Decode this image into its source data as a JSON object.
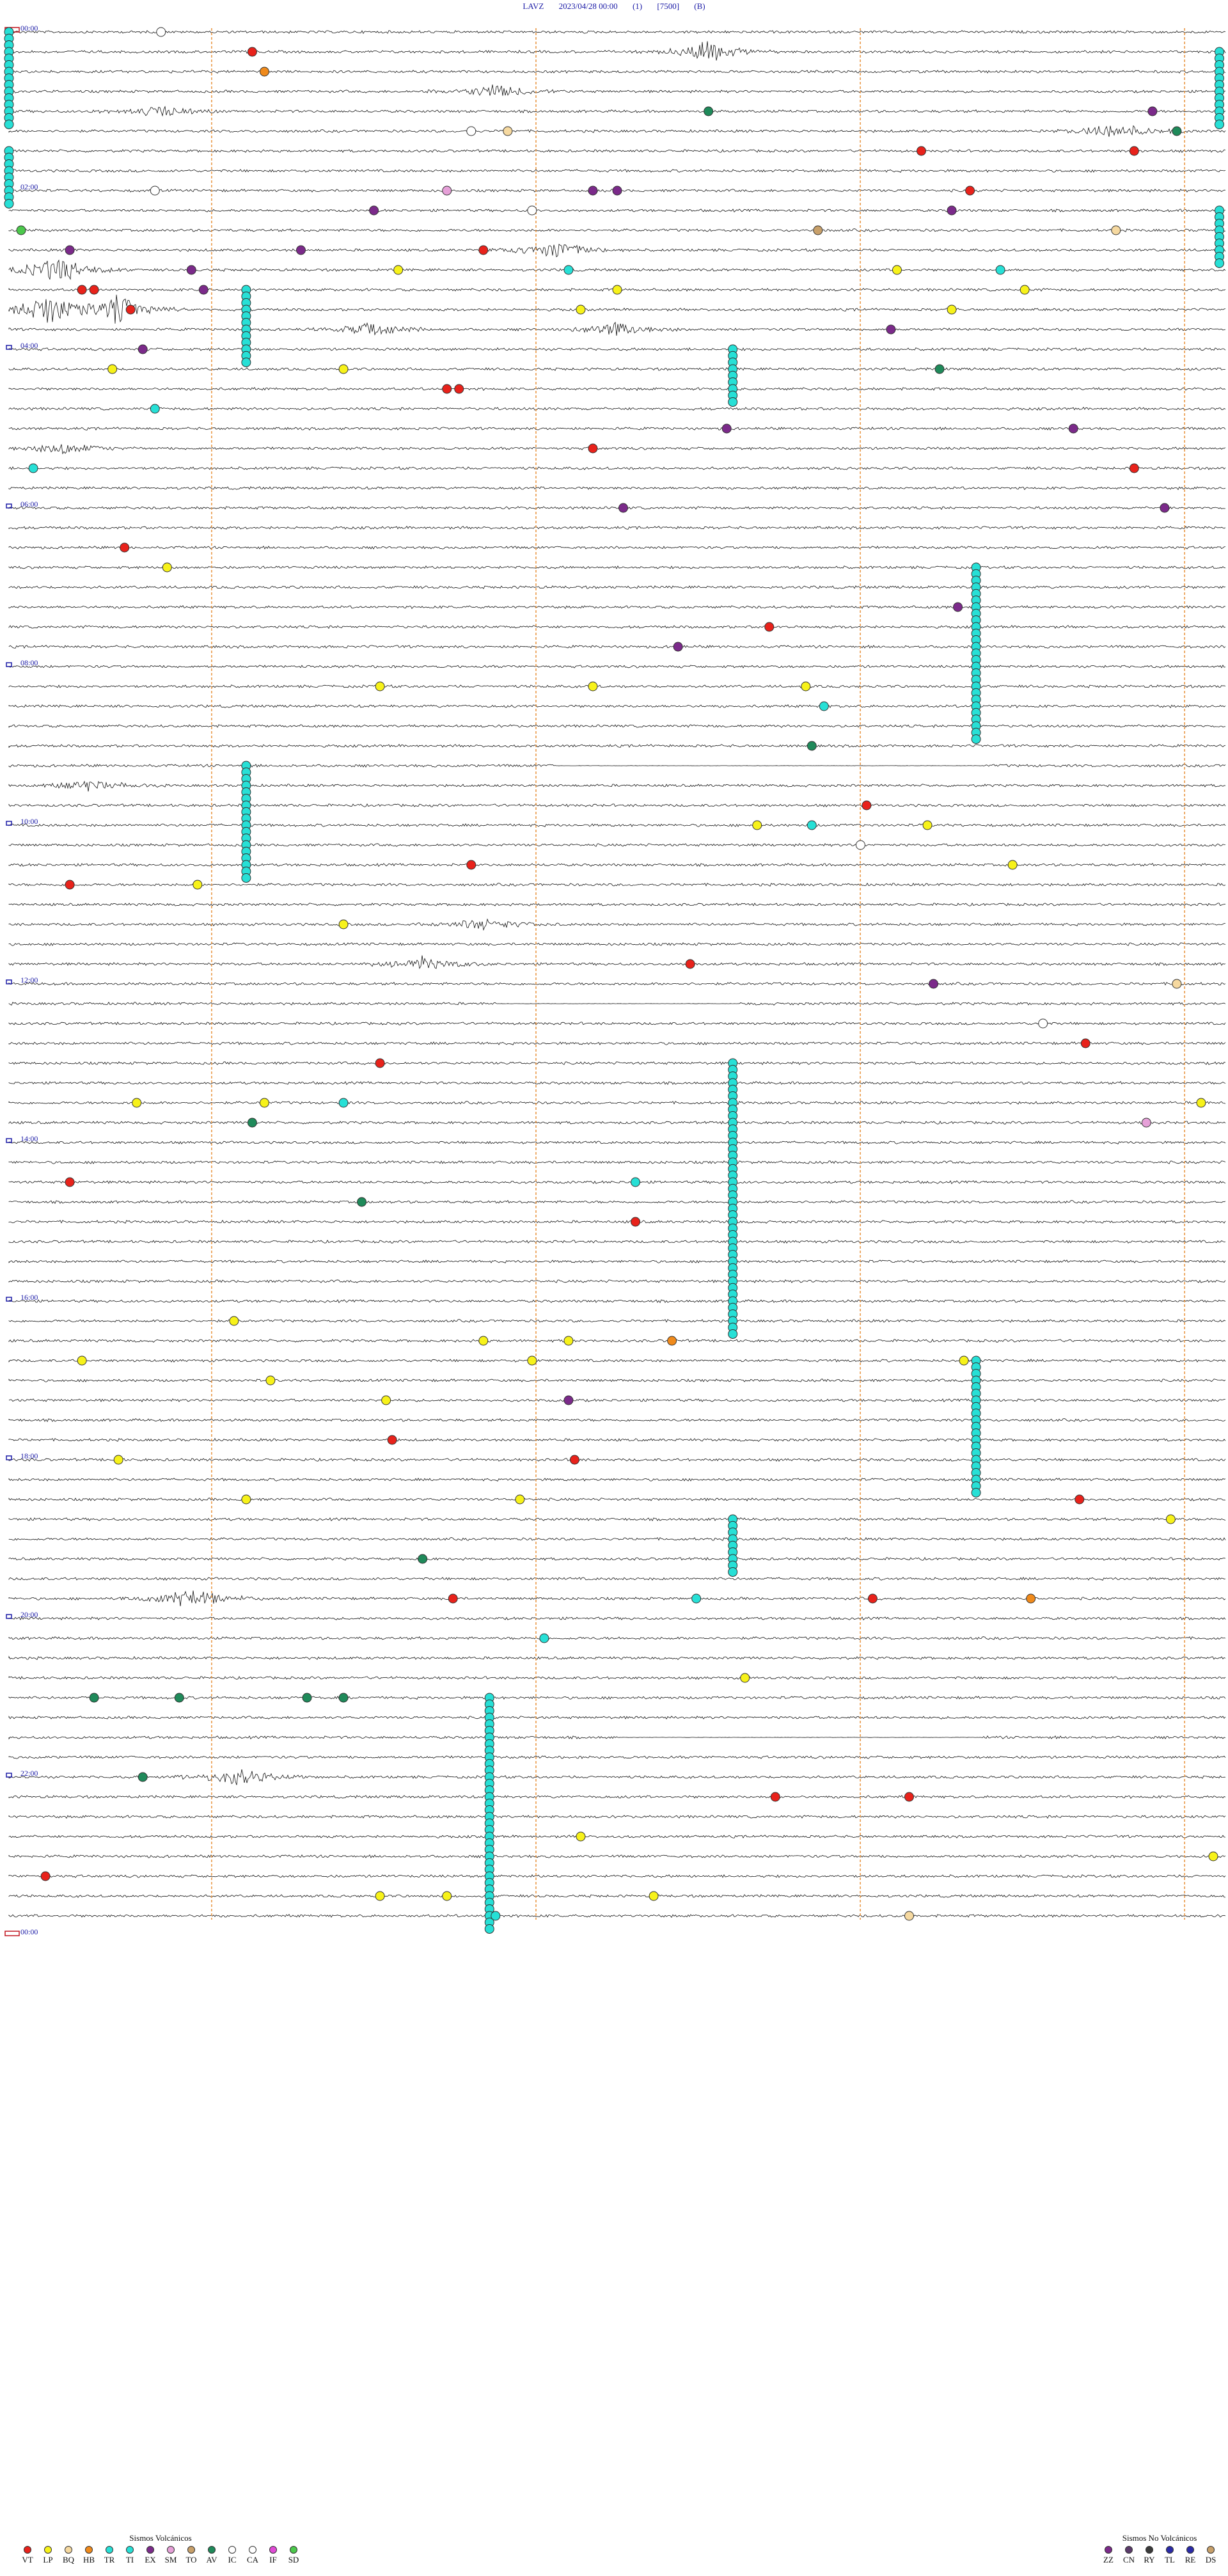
{
  "header": {
    "station": "LAVZ",
    "datetime": "2023/04/28 00:00",
    "channel": "(1)",
    "scale": "[7500]",
    "filter": "(B)"
  },
  "chart_data": {
    "type": "heatmap",
    "x_minutes_per_row": 15,
    "rows": 96,
    "hour_labels": [
      "00:00",
      "02:00",
      "04:00",
      "06:00",
      "08:00",
      "10:00",
      "12:00",
      "14:00",
      "16:00",
      "18:00",
      "20:00",
      "22:00",
      "00:00"
    ],
    "vertical_markers_minute": [
      2.5,
      6.5,
      10.5,
      14.5
    ],
    "amplitude_events": [
      {
        "row": 1,
        "minute": 11.5,
        "amp": 18
      },
      {
        "row": 3,
        "minute": 8.0,
        "amp": 12
      },
      {
        "row": 4,
        "minute": 2.5,
        "amp": 10
      },
      {
        "row": 5,
        "minute": 18.2,
        "amp": 14
      },
      {
        "row": 11,
        "minute": 9.0,
        "amp": 16
      },
      {
        "row": 12,
        "minute": 0.8,
        "amp": 22
      },
      {
        "row": 14,
        "minute": 0.6,
        "amp": 26
      },
      {
        "row": 14,
        "minute": 1.8,
        "amp": 24
      },
      {
        "row": 15,
        "minute": 6.0,
        "amp": 12
      },
      {
        "row": 15,
        "minute": 10.0,
        "amp": 12
      },
      {
        "row": 21,
        "minute": 0.9,
        "amp": 10
      },
      {
        "row": 38,
        "minute": 1.3,
        "amp": 10
      },
      {
        "row": 45,
        "minute": 7.8,
        "amp": 10
      },
      {
        "row": 47,
        "minute": 6.8,
        "amp": 12
      },
      {
        "row": 79,
        "minute": 3.0,
        "amp": 18
      },
      {
        "row": 88,
        "minute": 3.8,
        "amp": 16
      }
    ],
    "flat_segments": [
      {
        "row": 37,
        "from_minute": 9.0,
        "to_minute": 16.0
      },
      {
        "row": 49,
        "from_minute": 8.0,
        "to_minute": 12.0
      },
      {
        "row": 86,
        "from_minute": 10.0,
        "to_minute": 16.0
      }
    ],
    "event_runs": [
      {
        "type": "TR",
        "minute": 0.0,
        "row_from": 0,
        "row_to": 4
      },
      {
        "type": "TR",
        "minute": 19.9,
        "row_from": 1,
        "row_to": 4
      },
      {
        "type": "TR",
        "minute": 0.0,
        "row_from": 6,
        "row_to": 8
      },
      {
        "type": "TR",
        "minute": 19.9,
        "row_from": 9,
        "row_to": 11
      },
      {
        "type": "TR",
        "minute": 3.9,
        "row_from": 13,
        "row_to": 16
      },
      {
        "type": "TR",
        "minute": 11.9,
        "row_from": 16,
        "row_to": 18
      },
      {
        "type": "TR",
        "minute": 15.9,
        "row_from": 27,
        "row_to": 35
      },
      {
        "type": "TR",
        "minute": 3.9,
        "row_from": 37,
        "row_to": 42
      },
      {
        "type": "TR",
        "minute": 11.9,
        "row_from": 52,
        "row_to": 65
      },
      {
        "type": "TR",
        "minute": 15.9,
        "row_from": 67,
        "row_to": 73
      },
      {
        "type": "TR",
        "minute": 11.9,
        "row_from": 75,
        "row_to": 77
      },
      {
        "type": "TR",
        "minute": 7.9,
        "row_from": 84,
        "row_to": 95
      }
    ],
    "events": [
      {
        "type": "CA",
        "row": 0,
        "minute": 2.5
      },
      {
        "type": "VT",
        "row": 1,
        "minute": 4.0
      },
      {
        "type": "HB",
        "row": 2,
        "minute": 4.2
      },
      {
        "type": "AV",
        "row": 4,
        "minute": 11.5
      },
      {
        "type": "EX",
        "row": 4,
        "minute": 18.8
      },
      {
        "type": "CA",
        "row": 5,
        "minute": 7.6
      },
      {
        "type": "BQ",
        "row": 5,
        "minute": 8.2
      },
      {
        "type": "AV",
        "row": 5,
        "minute": 19.2
      },
      {
        "type": "VT",
        "row": 6,
        "minute": 15.0
      },
      {
        "type": "VT",
        "row": 6,
        "minute": 18.5
      },
      {
        "type": "CA",
        "row": 8,
        "minute": 2.4
      },
      {
        "type": "EX",
        "row": 8,
        "minute": 9.6
      },
      {
        "type": "EX",
        "row": 8,
        "minute": 10.0
      },
      {
        "type": "SM",
        "row": 8,
        "minute": 7.2
      },
      {
        "type": "VT",
        "row": 8,
        "minute": 15.8
      },
      {
        "type": "EX",
        "row": 9,
        "minute": 6.0
      },
      {
        "type": "IC",
        "row": 9,
        "minute": 8.6
      },
      {
        "type": "EX",
        "row": 9,
        "minute": 15.5
      },
      {
        "type": "TO",
        "row": 10,
        "minute": 13.3
      },
      {
        "type": "BQ",
        "row": 10,
        "minute": 18.2
      },
      {
        "type": "EX",
        "row": 11,
        "minute": 1.0
      },
      {
        "type": "EX",
        "row": 11,
        "minute": 4.8
      },
      {
        "type": "VT",
        "row": 11,
        "minute": 7.8
      },
      {
        "type": "SD",
        "row": 10,
        "minute": 0.2
      },
      {
        "type": "EX",
        "row": 12,
        "minute": 3.0
      },
      {
        "type": "LP",
        "row": 12,
        "minute": 6.4
      },
      {
        "type": "TI",
        "row": 12,
        "minute": 9.2
      },
      {
        "type": "LP",
        "row": 12,
        "minute": 14.6
      },
      {
        "type": "TI",
        "row": 12,
        "minute": 16.3
      },
      {
        "type": "EX",
        "row": 13,
        "minute": 3.2
      },
      {
        "type": "LP",
        "row": 13,
        "minute": 10.0
      },
      {
        "type": "LP",
        "row": 13,
        "minute": 16.7
      },
      {
        "type": "VT",
        "row": 13,
        "minute": 1.2
      },
      {
        "type": "VT",
        "row": 13,
        "minute": 1.4
      },
      {
        "type": "VT",
        "row": 14,
        "minute": 2.0
      },
      {
        "type": "LP",
        "row": 14,
        "minute": 15.5
      },
      {
        "type": "LP",
        "row": 14,
        "minute": 9.4
      },
      {
        "type": "EX",
        "row": 15,
        "minute": 14.5
      },
      {
        "type": "EX",
        "row": 16,
        "minute": 2.2
      },
      {
        "type": "LP",
        "row": 17,
        "minute": 5.5
      },
      {
        "type": "LP",
        "row": 17,
        "minute": 1.7
      },
      {
        "type": "VT",
        "row": 18,
        "minute": 7.2
      },
      {
        "type": "VT",
        "row": 18,
        "minute": 7.4
      },
      {
        "type": "AV",
        "row": 17,
        "minute": 15.3
      },
      {
        "type": "TI",
        "row": 19,
        "minute": 2.4
      },
      {
        "type": "EX",
        "row": 20,
        "minute": 11.8
      },
      {
        "type": "EX",
        "row": 20,
        "minute": 17.5
      },
      {
        "type": "VT",
        "row": 21,
        "minute": 9.6
      },
      {
        "type": "VT",
        "row": 22,
        "minute": 18.5
      },
      {
        "type": "TI",
        "row": 22,
        "minute": 0.4
      },
      {
        "type": "EX",
        "row": 24,
        "minute": 10.1
      },
      {
        "type": "EX",
        "row": 24,
        "minute": 19.0
      },
      {
        "type": "VT",
        "row": 26,
        "minute": 1.9
      },
      {
        "type": "LP",
        "row": 27,
        "minute": 2.6
      },
      {
        "type": "EX",
        "row": 29,
        "minute": 15.6
      },
      {
        "type": "VT",
        "row": 30,
        "minute": 12.5
      },
      {
        "type": "EX",
        "row": 31,
        "minute": 11.0
      },
      {
        "type": "LP",
        "row": 33,
        "minute": 6.1
      },
      {
        "type": "LP",
        "row": 33,
        "minute": 9.6
      },
      {
        "type": "LP",
        "row": 33,
        "minute": 13.1
      },
      {
        "type": "TI",
        "row": 34,
        "minute": 13.4
      },
      {
        "type": "AV",
        "row": 36,
        "minute": 13.2
      },
      {
        "type": "VT",
        "row": 39,
        "minute": 14.1
      },
      {
        "type": "LP",
        "row": 40,
        "minute": 12.3
      },
      {
        "type": "LP",
        "row": 40,
        "minute": 15.1
      },
      {
        "type": "TI",
        "row": 40,
        "minute": 13.2
      },
      {
        "type": "CA",
        "row": 41,
        "minute": 14.0
      },
      {
        "type": "VT",
        "row": 42,
        "minute": 7.6
      },
      {
        "type": "LP",
        "row": 42,
        "minute": 16.5
      },
      {
        "type": "LP",
        "row": 43,
        "minute": 3.1
      },
      {
        "type": "VT",
        "row": 43,
        "minute": 1.0
      },
      {
        "type": "LP",
        "row": 45,
        "minute": 5.5
      },
      {
        "type": "VT",
        "row": 47,
        "minute": 11.2
      },
      {
        "type": "EX",
        "row": 48,
        "minute": 15.2
      },
      {
        "type": "BQ",
        "row": 48,
        "minute": 19.2
      },
      {
        "type": "CA",
        "row": 50,
        "minute": 17.0
      },
      {
        "type": "VT",
        "row": 51,
        "minute": 17.7
      },
      {
        "type": "VT",
        "row": 52,
        "minute": 6.1
      },
      {
        "type": "LP",
        "row": 54,
        "minute": 2.1
      },
      {
        "type": "LP",
        "row": 54,
        "minute": 4.2
      },
      {
        "type": "TI",
        "row": 54,
        "minute": 5.5
      },
      {
        "type": "LP",
        "row": 54,
        "minute": 19.6
      },
      {
        "type": "SM",
        "row": 55,
        "minute": 18.7
      },
      {
        "type": "AV",
        "row": 55,
        "minute": 4.0
      },
      {
        "type": "TR",
        "row": 58,
        "minute": 10.3
      },
      {
        "type": "VT",
        "row": 58,
        "minute": 1.0
      },
      {
        "type": "VT",
        "row": 60,
        "minute": 10.3
      },
      {
        "type": "AV",
        "row": 59,
        "minute": 5.8
      },
      {
        "type": "LP",
        "row": 65,
        "minute": 3.7
      },
      {
        "type": "LP",
        "row": 66,
        "minute": 7.8
      },
      {
        "type": "LP",
        "row": 66,
        "minute": 9.2
      },
      {
        "type": "HB",
        "row": 66,
        "minute": 10.9
      },
      {
        "type": "LP",
        "row": 67,
        "minute": 1.2
      },
      {
        "type": "LP",
        "row": 67,
        "minute": 8.6
      },
      {
        "type": "LP",
        "row": 67,
        "minute": 15.7
      },
      {
        "type": "LP",
        "row": 68,
        "minute": 4.3
      },
      {
        "type": "EX",
        "row": 69,
        "minute": 9.2
      },
      {
        "type": "LP",
        "row": 69,
        "minute": 6.2
      },
      {
        "type": "VT",
        "row": 71,
        "minute": 6.3
      },
      {
        "type": "VT",
        "row": 72,
        "minute": 9.3
      },
      {
        "type": "LP",
        "row": 72,
        "minute": 1.8
      },
      {
        "type": "LP",
        "row": 74,
        "minute": 3.9
      },
      {
        "type": "LP",
        "row": 74,
        "minute": 8.4
      },
      {
        "type": "VT",
        "row": 74,
        "minute": 17.6
      },
      {
        "type": "LP",
        "row": 75,
        "minute": 19.1
      },
      {
        "type": "AV",
        "row": 77,
        "minute": 6.8
      },
      {
        "type": "TR",
        "row": 79,
        "minute": 11.3
      },
      {
        "type": "VT",
        "row": 79,
        "minute": 7.3
      },
      {
        "type": "VT",
        "row": 79,
        "minute": 14.2
      },
      {
        "type": "HB",
        "row": 79,
        "minute": 16.8
      },
      {
        "type": "TI",
        "row": 81,
        "minute": 8.8
      },
      {
        "type": "LP",
        "row": 83,
        "minute": 12.1
      },
      {
        "type": "AV",
        "row": 84,
        "minute": 1.4
      },
      {
        "type": "AV",
        "row": 84,
        "minute": 2.8
      },
      {
        "type": "AV",
        "row": 84,
        "minute": 4.9
      },
      {
        "type": "AV",
        "row": 84,
        "minute": 5.5
      },
      {
        "type": "AV",
        "row": 88,
        "minute": 2.2
      },
      {
        "type": "VT",
        "row": 89,
        "minute": 12.6
      },
      {
        "type": "VT",
        "row": 89,
        "minute": 14.8
      },
      {
        "type": "LP",
        "row": 91,
        "minute": 9.4
      },
      {
        "type": "LP",
        "row": 92,
        "minute": 19.8
      },
      {
        "type": "VT",
        "row": 93,
        "minute": 0.6
      },
      {
        "type": "LP",
        "row": 94,
        "minute": 6.1
      },
      {
        "type": "LP",
        "row": 94,
        "minute": 7.2
      },
      {
        "type": "LP",
        "row": 94,
        "minute": 10.6
      },
      {
        "type": "TR",
        "row": 95,
        "minute": 8.0
      },
      {
        "type": "BQ",
        "row": 95,
        "minute": 14.8
      }
    ]
  },
  "legend_volcanic": {
    "title": "Sismos Volcánicos",
    "items": [
      {
        "code": "VT",
        "color": "#e8221b"
      },
      {
        "code": "LP",
        "color": "#f7f21a"
      },
      {
        "code": "BQ",
        "color": "#f6d9a0"
      },
      {
        "code": "HB",
        "color": "#f08a1b"
      },
      {
        "code": "TR",
        "color": "#27e0d6"
      },
      {
        "code": "TI",
        "color": "#27e0d6"
      },
      {
        "code": "EX",
        "color": "#7b2a8a"
      },
      {
        "code": "SM",
        "color": "#e6a0d8"
      },
      {
        "code": "TO",
        "color": "#c8a06a"
      },
      {
        "code": "AV",
        "color": "#1f8a5a"
      },
      {
        "code": "IC",
        "color": "#ffffff"
      },
      {
        "code": "CA",
        "color": "#ffffff"
      },
      {
        "code": "IF",
        "color": "#e04bd6"
      },
      {
        "code": "SD",
        "color": "#4cc84c"
      }
    ]
  },
  "legend_nonvolcanic": {
    "title": "Sismos No Volcánicos",
    "items": [
      {
        "code": "ZZ",
        "color": "#7b2a8a"
      },
      {
        "code": "CN",
        "color": "#5a3a6a"
      },
      {
        "code": "RY",
        "color": "#3a3a3a"
      },
      {
        "code": "TL",
        "color": "#2a2aa8"
      },
      {
        "code": "RE",
        "color": "#2a2aa8"
      },
      {
        "code": "DS",
        "color": "#c8a06a"
      }
    ]
  },
  "colors": {
    "trace": "#111111",
    "marker": "#e8913a",
    "hour_text": "#1a1aa6",
    "start_box": "#c0141e"
  }
}
